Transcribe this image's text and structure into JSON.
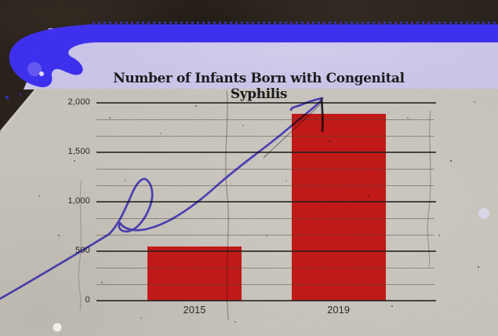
{
  "title": "Number of Infants Born with Congenital Syphilis",
  "chart_data": {
    "type": "bar",
    "title": "Number of Infants Born with Congenital Syphilis",
    "categories": [
      "2015",
      "2019"
    ],
    "values": [
      550,
      1890
    ],
    "xlabel": "",
    "ylabel": "",
    "ylim": [
      0,
      2000
    ],
    "yticks": [
      {
        "value": 0,
        "label": "0"
      },
      {
        "value": 500,
        "label": "500"
      },
      {
        "value": 1000,
        "label": "1,000"
      },
      {
        "value": 1500,
        "label": "1,500"
      },
      {
        "value": 2000,
        "label": "2,000"
      }
    ],
    "minor_gridlines_between_majors": 2,
    "grid": "on",
    "legend": "none",
    "bar_color": "#c31412",
    "annotations": [
      {
        "type": "hand-drawn-arrow",
        "description": "Looping blue marker arrow rising from the lower left, pointing to the top of the 2019 bar",
        "color": "#5b4df2"
      }
    ]
  },
  "colors": {
    "background": "#241d16",
    "paper": "#c9c5bc",
    "header_band": "#cdc7ec",
    "paint_stripe": "#3a2cf2",
    "bar": "#c31412",
    "arrow": "#5b4df2"
  }
}
